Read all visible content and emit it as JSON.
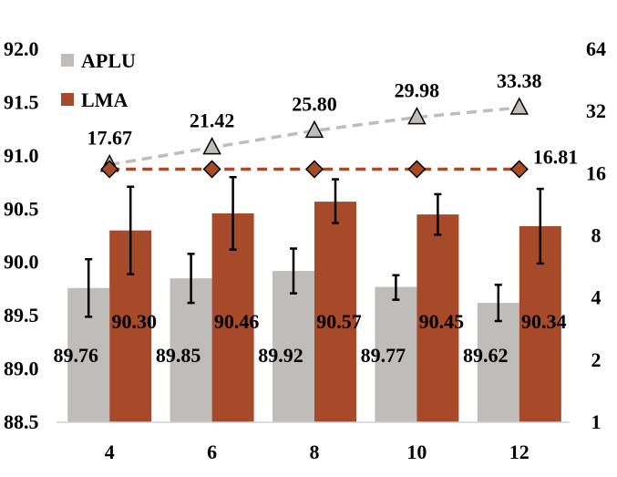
{
  "chart_data": {
    "type": "bar",
    "categories": [
      "4",
      "6",
      "8",
      "10",
      "12"
    ],
    "series": [
      {
        "name": "APLU",
        "values": [
          89.76,
          89.85,
          89.92,
          89.77,
          89.62
        ],
        "error_low": [
          89.49,
          89.62,
          89.71,
          89.65,
          89.45
        ],
        "error_high": [
          90.03,
          90.08,
          90.13,
          89.88,
          89.79
        ],
        "color": "#bfbcba"
      },
      {
        "name": "LMA",
        "values": [
          90.3,
          90.46,
          90.57,
          90.45,
          90.34
        ],
        "error_low": [
          89.89,
          90.12,
          90.37,
          90.26,
          89.99
        ],
        "error_high": [
          90.71,
          90.8,
          90.78,
          90.64,
          90.69
        ],
        "color": "#a64a2a"
      }
    ],
    "secondary_series": [
      {
        "marker": "triangle",
        "values": [
          17.67,
          21.42,
          25.8,
          29.98,
          33.38
        ],
        "labels": [
          "17.67",
          "21.42",
          "25.80",
          "29.98",
          "33.38"
        ],
        "color": "#bfbcba"
      },
      {
        "marker": "diamond",
        "values": [
          16.81,
          16.81,
          16.81,
          16.81,
          16.81
        ],
        "labels": [
          "",
          "",
          "",
          "",
          "16.81"
        ],
        "color": "#a64a2a"
      }
    ],
    "bar_labels": {
      "APLU": [
        "89.76",
        "89.85",
        "89.92",
        "89.77",
        "89.62"
      ],
      "LMA": [
        "90.30",
        "90.46",
        "90.57",
        "90.45",
        "90.34"
      ]
    },
    "ylim": [
      88.5,
      92.0
    ],
    "y_ticks": [
      "88.5",
      "89.0",
      "89.5",
      "90.0",
      "90.5",
      "91.0",
      "91.5",
      "92.0"
    ],
    "y2_scale": "log2",
    "y2lim": [
      1,
      64
    ],
    "y2_ticks": [
      "1",
      "2",
      "4",
      "8",
      "16",
      "32",
      "64"
    ],
    "legend": {
      "items": [
        "APLU",
        "LMA"
      ],
      "placement": "top-left"
    },
    "title": "",
    "xlabel": "",
    "ylabel": "",
    "grid": false
  }
}
